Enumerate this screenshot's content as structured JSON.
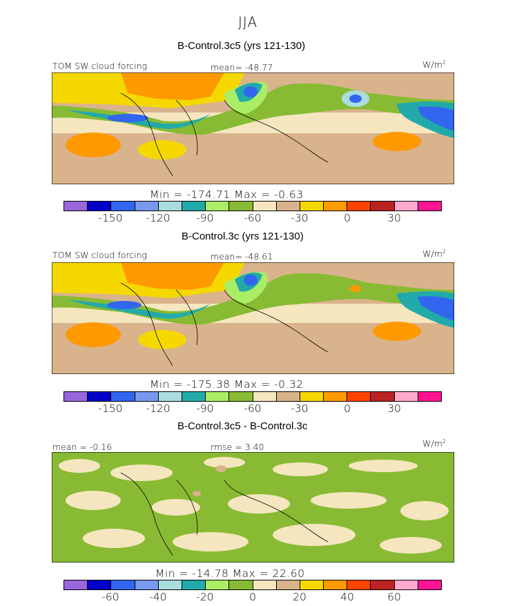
{
  "figure": {
    "season": "JJA",
    "panels": [
      {
        "title": "B-Control.3c5 (yrs 121-130)",
        "left_label": "TOM SW cloud forcing",
        "center_label": "mean= -48.77",
        "units_base": "W/m",
        "units_exp": "2",
        "min_max": "Min = -174.71 Max =  -0.63",
        "colorbar_ticks": [
          "-150",
          "-120",
          "-90",
          "-60",
          "-30",
          "0",
          "30"
        ]
      },
      {
        "title": "B-Control.3c (yrs 121-130)",
        "left_label": "TOM SW cloud forcing",
        "center_label": "mean= -48.61",
        "units_base": "W/m",
        "units_exp": "2",
        "min_max": "Min = -175.38 Max =  -0.32",
        "colorbar_ticks": [
          "-150",
          "-120",
          "-90",
          "-60",
          "-30",
          "0",
          "30"
        ]
      },
      {
        "title": "B-Control.3c5 - B-Control.3c",
        "left_label": "mean =  -0.16",
        "center_label": "rmse =   3.40",
        "units_base": "W/m",
        "units_exp": "2",
        "min_max": "Min = -14.78 Max =  22.60",
        "colorbar_ticks": [
          "-60",
          "-40",
          "-20",
          "0",
          "20",
          "40",
          "60"
        ]
      }
    ],
    "colorbar_colors": [
      "#9966dd",
      "#0000c8",
      "#3366ee",
      "#7799ee",
      "#aadddd",
      "#22aaaa",
      "#aaee66",
      "#88bb33",
      "#f5e6bf",
      "#d9b38c",
      "#f5d800",
      "#ff9900",
      "#ff4400",
      "#bb2222",
      "#ffaacc",
      "#ff1493"
    ]
  }
}
